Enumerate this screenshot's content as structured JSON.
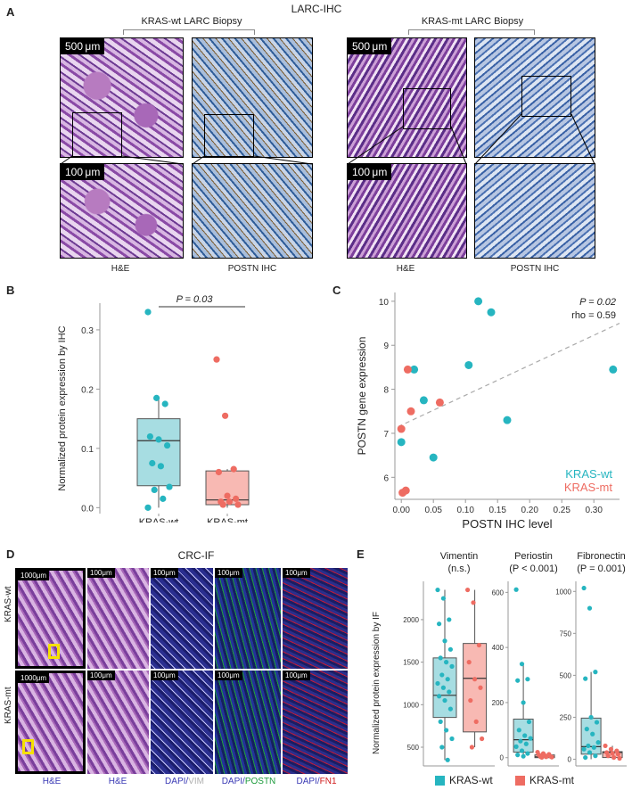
{
  "panelA": {
    "letter": "A",
    "title": "LARC-IHC",
    "group_wt": "KRAS-wt LARC Biopsy",
    "group_mt": "KRAS-mt LARC Biopsy",
    "scale_large": "500 μm",
    "scale_small": "100 μm",
    "caption_he": "H&E",
    "caption_ihc": "POSTN IHC"
  },
  "panelB": {
    "letter": "B",
    "ylabel": "Normalized protein expression by IHC",
    "pvalue": "P = 0.03",
    "xticks": [
      "KRAS-wt",
      "KRAS-mt"
    ],
    "yticks": [
      "0.0",
      "0.1",
      "0.2",
      "0.3"
    ]
  },
  "panelC": {
    "letter": "C",
    "ylabel": "POSTN gene expression",
    "xlabel": "POSTN IHC level",
    "pvalue": "P = 0.02",
    "rho": "rho = 0.59",
    "legend_wt": "KRAS-wt",
    "legend_mt": "KRAS-mt",
    "xticks": [
      "0.00",
      "0.05",
      "0.10",
      "0.15",
      "0.20",
      "0.25",
      "0.30"
    ],
    "yticks": [
      "6",
      "7",
      "8",
      "9",
      "10"
    ]
  },
  "panelD": {
    "letter": "D",
    "title": "CRC-IF",
    "row_wt": "KRAS-wt",
    "row_mt": "KRAS-mt",
    "scale_large": "1000μm",
    "scale_small": "100μm",
    "cap_he1": "H&E",
    "cap_he2": "H&E",
    "cap_dapi_a": "DAPI/",
    "cap_vim": "VIM",
    "cap_dapi_b": "DAPI/",
    "cap_postn": "POSTN",
    "cap_dapi_c": "DAPI/",
    "cap_fn1": "FN1"
  },
  "panelE": {
    "letter": "E",
    "ylabel": "Normalized protein expression by IF",
    "sub1_title": "Vimentin",
    "sub1_p": "(n.s.)",
    "sub2_title": "Periostin",
    "sub2_p": "(P < 0.001)",
    "sub3_title": "Fibronectin",
    "sub3_p": "(P = 0.001)",
    "sub1_yticks": [
      "500",
      "1000",
      "1500",
      "2000"
    ],
    "sub2_yticks": [
      "0",
      "200",
      "400",
      "600"
    ],
    "sub3_yticks": [
      "0",
      "250",
      "500",
      "750",
      "1000"
    ],
    "legend_wt": "KRAS-wt",
    "legend_mt": "KRAS-mt"
  },
  "colors": {
    "wt": "#26b5c0",
    "mt": "#ee6c62",
    "wt_box": "#a7dde2",
    "mt_box": "#f8b9b3"
  },
  "chart_data": [
    {
      "type": "box",
      "panel": "B",
      "ylabel": "Normalized protein expression by IHC",
      "categories": [
        "KRAS-wt",
        "KRAS-mt"
      ],
      "ylim": [
        -0.01,
        0.345
      ],
      "series": [
        {
          "name": "KRAS-wt",
          "values": [
            0.33,
            0.185,
            0.175,
            0.12,
            0.115,
            0.105,
            0.075,
            0.07,
            0.035,
            0.03,
            0.015,
            0.0
          ],
          "box": {
            "q1": 0.037,
            "median": 0.113,
            "q3": 0.15,
            "whisker_low": 0.0,
            "whisker_high": 0.185
          }
        },
        {
          "name": "KRAS-mt",
          "values": [
            0.25,
            0.155,
            0.065,
            0.06,
            0.02,
            0.015,
            0.01,
            0.01,
            0.005,
            0.005
          ],
          "box": {
            "q1": 0.005,
            "median": 0.013,
            "q3": 0.062,
            "whisker_low": 0.0,
            "whisker_high": 0.065
          }
        }
      ],
      "annotation": "P = 0.03"
    },
    {
      "type": "scatter",
      "panel": "C",
      "xlabel": "POSTN IHC level",
      "ylabel": "POSTN gene expression",
      "xlim": [
        -0.01,
        0.34
      ],
      "ylim": [
        5.5,
        10.2
      ],
      "series": [
        {
          "name": "KRAS-wt",
          "points": [
            [
              0.0,
              6.8
            ],
            [
              0.02,
              8.45
            ],
            [
              0.035,
              7.75
            ],
            [
              0.05,
              6.45
            ],
            [
              0.105,
              8.55
            ],
            [
              0.12,
              10.0
            ],
            [
              0.14,
              9.75
            ],
            [
              0.165,
              7.3
            ],
            [
              0.33,
              8.45
            ]
          ]
        },
        {
          "name": "KRAS-mt",
          "points": [
            [
              0.0,
              7.1
            ],
            [
              0.002,
              5.65
            ],
            [
              0.007,
              5.7
            ],
            [
              0.01,
              8.45
            ],
            [
              0.015,
              7.5
            ],
            [
              0.06,
              7.7
            ]
          ]
        }
      ],
      "trendline": {
        "x": [
          -0.005,
          0.34
        ],
        "y": [
          7.15,
          9.5
        ]
      },
      "annotation": [
        "P = 0.02",
        "rho = 0.59"
      ]
    },
    {
      "type": "box",
      "panel": "E",
      "title": "Vimentin",
      "ylim": [
        280,
        2450
      ],
      "series": [
        {
          "name": "KRAS-wt",
          "values": [
            2350,
            2250,
            2000,
            1950,
            1750,
            1650,
            1550,
            1500,
            1450,
            1350,
            1300,
            1250,
            1200,
            1150,
            1100,
            1050,
            950,
            800,
            700,
            600,
            500,
            350
          ],
          "box": {
            "q1": 850,
            "median": 1110,
            "q3": 1550,
            "whisker_low": 350,
            "whisker_high": 2350
          }
        },
        {
          "name": "KRAS-mt",
          "values": [
            2350,
            2200,
            1700,
            1500,
            1300,
            1200,
            1050,
            800,
            600,
            500
          ],
          "box": {
            "q1": 680,
            "median": 1310,
            "q3": 1720,
            "whisker_low": 500,
            "whisker_high": 2350
          }
        }
      ]
    },
    {
      "type": "box",
      "panel": "E",
      "title": "Periostin",
      "ylim": [
        -30,
        640
      ],
      "series": [
        {
          "name": "KRAS-wt",
          "values": [
            610,
            340,
            285,
            280,
            200,
            130,
            100,
            80,
            70,
            60,
            50,
            40,
            25,
            15,
            10,
            5
          ],
          "box": {
            "q1": 20,
            "median": 65,
            "q3": 140,
            "whisker_low": 0,
            "whisker_high": 340
          }
        },
        {
          "name": "KRAS-mt",
          "values": [
            20,
            15,
            12,
            10,
            8,
            5,
            4,
            3,
            2,
            1
          ],
          "box": {
            "q1": 0,
            "median": 3,
            "q3": 10,
            "whisker_low": 0,
            "whisker_high": 20
          }
        }
      ]
    },
    {
      "type": "box",
      "panel": "E",
      "title": "Fibronectin",
      "ylim": [
        -40,
        1060
      ],
      "series": [
        {
          "name": "KRAS-wt",
          "values": [
            1020,
            900,
            520,
            480,
            250,
            220,
            180,
            150,
            100,
            80,
            70,
            60,
            40,
            20,
            10
          ],
          "box": {
            "q1": 30,
            "median": 75,
            "q3": 245,
            "whisker_low": 0,
            "whisker_high": 520
          }
        },
        {
          "name": "KRAS-mt",
          "values": [
            80,
            60,
            50,
            40,
            35,
            30,
            20,
            10,
            5
          ],
          "box": {
            "q1": 10,
            "median": 40,
            "q3": 45,
            "whisker_low": 0,
            "whisker_high": 80
          }
        }
      ]
    }
  ]
}
